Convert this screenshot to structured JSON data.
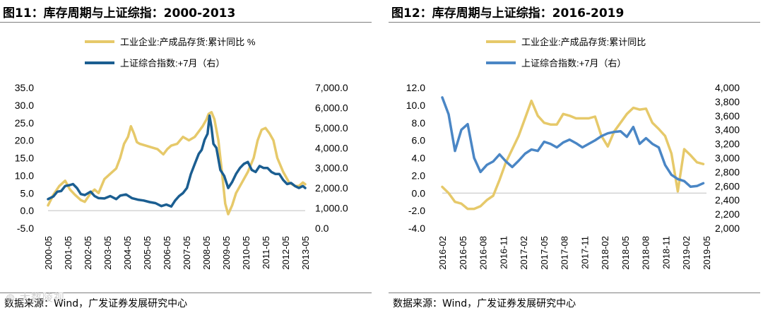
{
  "source_text": "数据来源：Wind，广发证券发展研究中心",
  "watermark": "Lo 大数陵视",
  "colors": {
    "inventory": "#E6C96A",
    "index_left": "#1B5E91",
    "index_right": "#4A86C5",
    "rule": "#7F7F7F",
    "axis": "#BFBFBF"
  },
  "chart_data": [
    {
      "type": "line",
      "title": "图11：库存周期与上证综指：2000-2013",
      "xlabel": "",
      "ylabel": "",
      "x_ticks": [
        "2000-05",
        "2001-05",
        "2002-05",
        "2003-05",
        "2004-05",
        "2005-05",
        "2006-05",
        "2007-05",
        "2008-05",
        "2009-05",
        "2010-05",
        "2011-05",
        "2012-05",
        "2013-05"
      ],
      "x_range": [
        2000.33,
        2013.42
      ],
      "ylim_left": [
        -5,
        35
      ],
      "yticks_left": [
        "-5.0",
        "0.0",
        "5.0",
        "10.0",
        "15.0",
        "20.0",
        "25.0",
        "30.0",
        "35.0"
      ],
      "ylim_right": [
        0,
        7000
      ],
      "yticks_right": [
        "0.0",
        "1,000.0",
        "2,000.0",
        "3,000.0",
        "4,000.0",
        "5,000.0",
        "6,000.0",
        "7,000.0"
      ],
      "legend_position": "top",
      "series": [
        {
          "name": "工业企业:产成品存货:累计同比 %",
          "axis": "left",
          "color": "#E6C96A",
          "x": [
            2000.33,
            2000.6,
            2000.9,
            2001.2,
            2001.45,
            2001.7,
            2002.0,
            2002.2,
            2002.5,
            2002.7,
            2002.9,
            2003.2,
            2003.5,
            2003.8,
            2004.0,
            2004.2,
            2004.4,
            2004.55,
            2004.7,
            2004.85,
            2005.0,
            2005.3,
            2005.6,
            2005.9,
            2006.2,
            2006.4,
            2006.6,
            2006.9,
            2007.2,
            2007.5,
            2007.8,
            2008.0,
            2008.2,
            2008.4,
            2008.5,
            2008.65,
            2008.8,
            2009.0,
            2009.2,
            2009.35,
            2009.5,
            2009.7,
            2009.9,
            2010.2,
            2010.5,
            2010.8,
            2011.0,
            2011.2,
            2011.4,
            2011.6,
            2011.8,
            2012.0,
            2012.3,
            2012.6,
            2012.9,
            2013.1,
            2013.3,
            2013.42
          ],
          "y": [
            1.5,
            4.5,
            7,
            8.5,
            6,
            4.5,
            3,
            2.5,
            5,
            6,
            5,
            9,
            10.5,
            12,
            15,
            19,
            21,
            24,
            22,
            19.5,
            19,
            18.5,
            18,
            17.5,
            16,
            17.5,
            18.5,
            19,
            21,
            20,
            21,
            22.5,
            24,
            26,
            27.5,
            28,
            26,
            20,
            10,
            2,
            -1,
            1.5,
            5,
            8,
            11,
            15,
            20,
            23,
            23.5,
            22,
            20,
            15,
            11,
            8,
            7,
            7,
            8,
            7.5
          ]
        },
        {
          "name": "上证综合指数:+7月（右）",
          "axis": "right",
          "color": "#1B5E91",
          "x": [
            2000.33,
            2000.6,
            2000.8,
            2001.0,
            2001.2,
            2001.45,
            2001.6,
            2001.8,
            2002.0,
            2002.2,
            2002.5,
            2002.7,
            2002.9,
            2003.2,
            2003.5,
            2003.8,
            2004.0,
            2004.3,
            2004.6,
            2004.9,
            2005.2,
            2005.5,
            2005.8,
            2006.1,
            2006.35,
            2006.6,
            2006.8,
            2007.0,
            2007.2,
            2007.4,
            2007.6,
            2007.8,
            2008.0,
            2008.15,
            2008.3,
            2008.45,
            2008.55,
            2008.65,
            2008.75,
            2008.9,
            2009.1,
            2009.3,
            2009.5,
            2009.7,
            2009.9,
            2010.1,
            2010.3,
            2010.5,
            2010.7,
            2010.9,
            2011.1,
            2011.3,
            2011.5,
            2011.7,
            2011.9,
            2012.1,
            2012.3,
            2012.5,
            2012.7,
            2012.9,
            2013.1,
            2013.3,
            2013.42
          ],
          "y": [
            1450,
            1580,
            1820,
            1850,
            2100,
            2150,
            2200,
            2000,
            1700,
            1650,
            1820,
            1600,
            1500,
            1480,
            1600,
            1450,
            1620,
            1680,
            1500,
            1420,
            1380,
            1300,
            1250,
            1100,
            1180,
            1080,
            1380,
            1600,
            1750,
            2000,
            2700,
            3200,
            3700,
            3900,
            4400,
            4700,
            5600,
            5000,
            4200,
            4000,
            2900,
            2600,
            2000,
            2300,
            2700,
            3000,
            3200,
            3300,
            2900,
            2800,
            3100,
            3000,
            3000,
            2800,
            2700,
            2700,
            2400,
            2200,
            2250,
            2100,
            2000,
            2100,
            2000
          ]
        }
      ]
    },
    {
      "type": "line",
      "title": "图12：库存周期与上证综指：2016-2019",
      "xlabel": "",
      "ylabel": "",
      "x_ticks": [
        "2016-02",
        "2016-05",
        "2016-08",
        "2016-11",
        "2017-02",
        "2017-05",
        "2017-08",
        "2017-11",
        "2018-02",
        "2018-05",
        "2018-08",
        "2018-11",
        "2019-02",
        "2019-05"
      ],
      "x_range": [
        0,
        41.5
      ],
      "ylim_left": [
        -4,
        12
      ],
      "yticks_left": [
        "-4.0",
        "-2.0",
        "0.0",
        "2.0",
        "4.0",
        "6.0",
        "8.0",
        "10.0",
        "12.0"
      ],
      "ylim_right": [
        2000,
        4000
      ],
      "yticks_right": [
        "2,000",
        "2,200",
        "2,400",
        "2,600",
        "2,800",
        "3,000",
        "3,200",
        "3,400",
        "3,600",
        "3,800",
        "4,000"
      ],
      "legend_position": "top",
      "series": [
        {
          "name": "工业企业:产成品存货:累计同比",
          "axis": "left",
          "color": "#E6C96A",
          "x": [
            0,
            1,
            2,
            3,
            4,
            5,
            6,
            7,
            8,
            9,
            10,
            11,
            12,
            13,
            14,
            15,
            16,
            17,
            18,
            19,
            20,
            21,
            22,
            23,
            24,
            25,
            26,
            27,
            28,
            29,
            30,
            31,
            32,
            33,
            34,
            35,
            36,
            37,
            38,
            39,
            40,
            41
          ],
          "y": [
            0.7,
            0,
            -1,
            -1.2,
            -1.8,
            -1.8,
            -1.5,
            -0.8,
            -0.3,
            1.5,
            3.5,
            5,
            6.5,
            8.5,
            10.5,
            8.8,
            8,
            7.8,
            7.8,
            9,
            8.8,
            8.5,
            8.5,
            8.5,
            8.7,
            6.5,
            5.3,
            7,
            8,
            9,
            9.7,
            9.5,
            9.6,
            8,
            7.3,
            6.5,
            4.5,
            0.2,
            5,
            4.3,
            3.5,
            3.3
          ]
        },
        {
          "name": "上证综合指数:+7月（右）",
          "axis": "right",
          "color": "#4A86C5",
          "x": [
            0,
            1,
            2,
            3,
            4,
            5,
            6,
            7,
            8,
            9,
            10,
            11,
            12,
            13,
            14,
            15,
            16,
            17,
            18,
            19,
            20,
            21,
            22,
            23,
            24,
            25,
            26,
            27,
            28,
            29,
            30,
            31,
            32,
            33,
            34,
            35,
            36,
            37,
            38,
            39,
            40,
            41
          ],
          "y": [
            3860,
            3620,
            3100,
            3400,
            3480,
            3000,
            2800,
            2900,
            2950,
            3050,
            2950,
            2870,
            2960,
            3060,
            3120,
            3100,
            3230,
            3200,
            3150,
            3220,
            3260,
            3210,
            3150,
            3200,
            3250,
            3310,
            3350,
            3370,
            3380,
            3300,
            3440,
            3200,
            3280,
            3200,
            3150,
            2900,
            2760,
            2700,
            2670,
            2590,
            2600,
            2640
          ]
        }
      ]
    }
  ]
}
